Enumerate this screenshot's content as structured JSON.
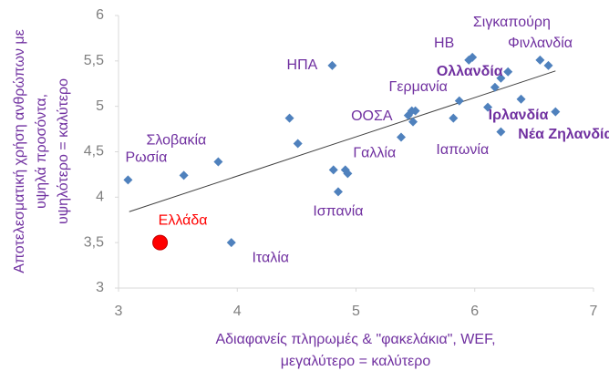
{
  "chart_data": {
    "type": "scatter",
    "x_label": [
      "Αδιαφανείς πληρωμές & \"φακελάκια\", WEF,",
      "μεγαλύτερο = καλύτερο"
    ],
    "y_label": [
      "Αποτελεσματική χρήση ανθρώπων με",
      "υψηλά προσόντα,",
      "υψηλότερο = καλύτερο"
    ],
    "x": [
      3.08,
      3.55,
      3.84,
      3.95,
      4.44,
      4.51,
      4.8,
      4.81,
      4.85,
      4.91,
      4.93,
      5.38,
      5.44,
      5.47,
      5.48,
      5.5,
      5.82,
      5.87,
      5.95,
      5.98,
      6.11,
      6.17,
      6.22,
      6.28,
      6.22,
      6.39,
      6.55,
      6.62,
      6.68
    ],
    "y": [
      4.19,
      4.24,
      4.39,
      3.5,
      4.87,
      4.59,
      5.45,
      4.3,
      4.06,
      4.3,
      4.26,
      4.66,
      4.9,
      4.95,
      4.83,
      4.95,
      4.87,
      5.06,
      5.51,
      5.54,
      4.99,
      5.21,
      5.31,
      5.38,
      4.72,
      5.08,
      5.51,
      5.45,
      4.94
    ],
    "labels": [
      "Ρωσία",
      null,
      "Σλοβακία",
      "Ιταλία",
      null,
      null,
      "ΗΠΑ",
      null,
      "Ισπανία",
      "Γαλλία",
      null,
      null,
      "ΟΟΣΑ",
      "Γερμανία",
      null,
      null,
      "Ιαπωνία",
      null,
      null,
      "ΗΒ",
      null,
      null,
      null,
      "Ολλανδία",
      null,
      "Ιρλανδία",
      "Σιγκαπούρη",
      "Φινλανδία",
      "Νέα Ζηλανδία"
    ],
    "color": "#4f81bd",
    "label_color": "#7030a0",
    "highlight": {
      "x": 3.35,
      "y": 3.5,
      "label": "Ελλάδα",
      "color": "#ff0000"
    },
    "trendline": {
      "x": [
        3.09,
        6.68
      ],
      "y": [
        3.84,
        5.39
      ]
    },
    "xlim": [
      3,
      7
    ],
    "ylim": [
      3,
      6
    ],
    "xticks": [
      3,
      4,
      5,
      6,
      7
    ],
    "yticks": [
      3,
      {
        "value": 3.5,
        "label": "3,5"
      },
      4,
      {
        "value": 4.5,
        "label": "4,5"
      },
      5,
      {
        "value": 5.5,
        "label": "5,5"
      },
      6
    ],
    "grid": false
  }
}
